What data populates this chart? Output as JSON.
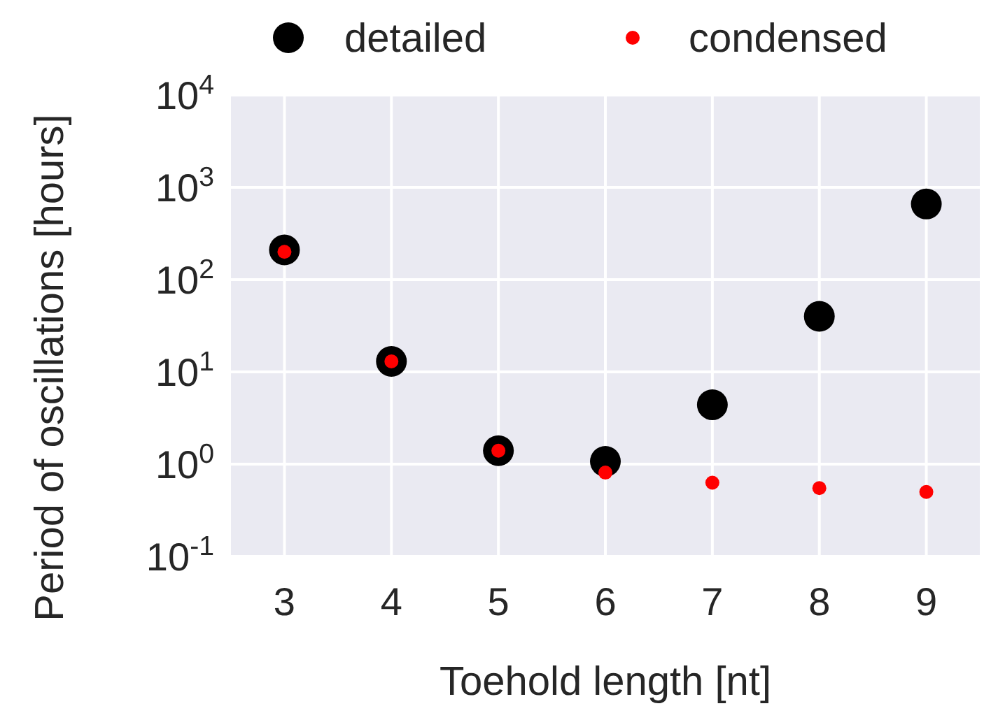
{
  "chart_data": {
    "type": "scatter",
    "xlabel": "Toehold length [nt]",
    "ylabel": "Period of oscillations [hours]",
    "x": [
      3,
      4,
      5,
      6,
      7,
      8,
      9
    ],
    "series": [
      {
        "name": "detailed",
        "color": "#000000",
        "values": [
          210,
          13,
          1.4,
          1.07,
          4.4,
          40,
          660
        ]
      },
      {
        "name": "condensed",
        "color": "#ff0000",
        "values": [
          200,
          13,
          1.4,
          0.81,
          0.63,
          0.55,
          0.5
        ]
      }
    ],
    "xlim": [
      2.5,
      9.5
    ],
    "xticks": [
      3,
      4,
      5,
      6,
      7,
      8,
      9
    ],
    "ylim": [
      0.1,
      10000
    ],
    "yticks": [
      {
        "value": 0.1,
        "label": "10$^{-1}$"
      },
      {
        "value": 1,
        "label": "10$^{0}$"
      },
      {
        "value": 10,
        "label": "10$^{1}$"
      },
      {
        "value": 100,
        "label": "10$^{2}$"
      },
      {
        "value": 1000,
        "label": "10$^{3}$"
      },
      {
        "value": 10000,
        "label": "10$^{4}$"
      }
    ],
    "log": "y",
    "grid": true,
    "legend": "top",
    "marker": "circle"
  }
}
